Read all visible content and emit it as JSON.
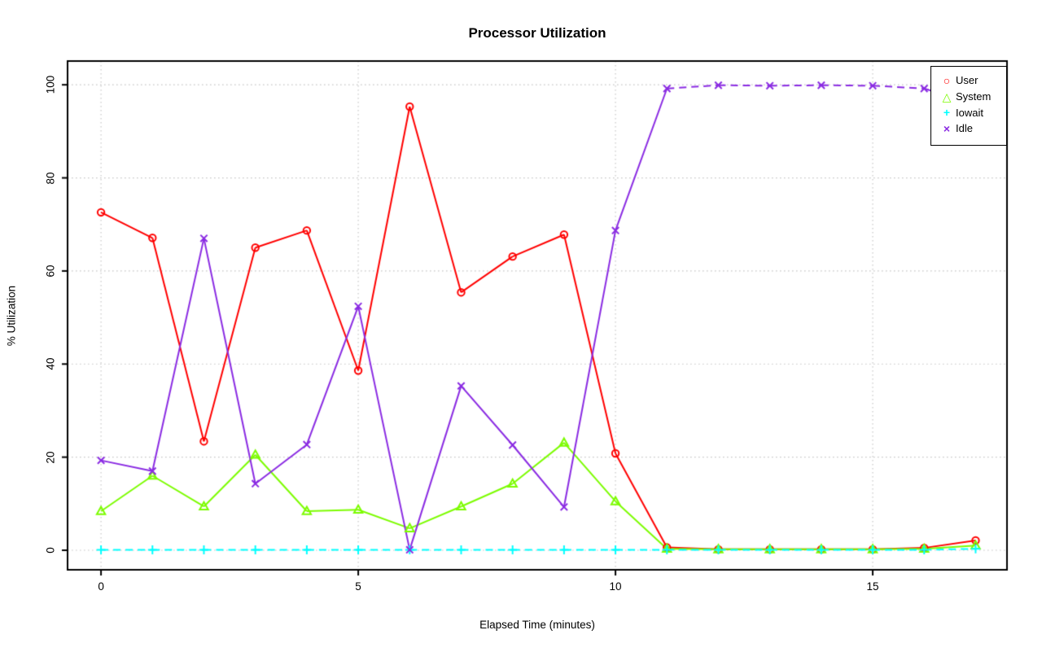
{
  "chart_data": {
    "type": "line",
    "title": "Processor Utilization",
    "xlabel": "Elapsed Time (minutes)",
    "ylabel": "% Utilization",
    "x": [
      0,
      1,
      2,
      3,
      4,
      5,
      6,
      7,
      8,
      9,
      10,
      11,
      12,
      13,
      14,
      15,
      16,
      17
    ],
    "series": [
      {
        "name": "User",
        "color": "#FF0000",
        "marker": "circle",
        "linestyle": "solid",
        "values": [
          72.6,
          67.1,
          23.4,
          65.0,
          68.7,
          38.6,
          95.3,
          55.4,
          63.1,
          67.8,
          20.8,
          0.6,
          0.2,
          0.2,
          0.2,
          0.2,
          0.5,
          2.1
        ]
      },
      {
        "name": "System",
        "color": "#7CFC00",
        "marker": "triangle",
        "linestyle": "solid",
        "values": [
          8.4,
          16.0,
          9.4,
          20.5,
          8.4,
          8.7,
          4.7,
          9.4,
          14.3,
          23.1,
          10.5,
          0.3,
          0.2,
          0.2,
          0.2,
          0.2,
          0.3,
          1.0
        ]
      },
      {
        "name": "Iowait",
        "color": "#00FFFF",
        "marker": "plus",
        "linestyle": "dashed",
        "values": [
          0.1,
          0.1,
          0.1,
          0.1,
          0.1,
          0.1,
          0.1,
          0.1,
          0.1,
          0.1,
          0.1,
          0.1,
          0.1,
          0.1,
          0.1,
          0.1,
          0.1,
          0.3
        ]
      },
      {
        "name": "Idle",
        "color": "#8A2BE2",
        "marker": "x",
        "linestyle": "dash_when_high",
        "values": [
          19.3,
          17.0,
          67.0,
          14.3,
          22.7,
          52.4,
          0.1,
          35.3,
          22.6,
          9.3,
          68.7,
          99.2,
          99.9,
          99.8,
          99.9,
          99.8,
          99.2,
          95.8
        ]
      }
    ],
    "x_ticks": [
      0,
      5,
      10,
      15
    ],
    "y_ticks": [
      0,
      20,
      40,
      60,
      80,
      100
    ],
    "x_range": [
      -0.65,
      17.61
    ],
    "y_range": [
      -4.2,
      105.1
    ],
    "grid": true,
    "grid_color": "#C6C6C6",
    "legend": {
      "position": "top-right",
      "labels": [
        "User",
        "System",
        "Iowait",
        "Idle"
      ]
    },
    "marker_glyphs": {
      "circle": "○",
      "triangle": "△",
      "plus": "+",
      "x": "×"
    }
  }
}
